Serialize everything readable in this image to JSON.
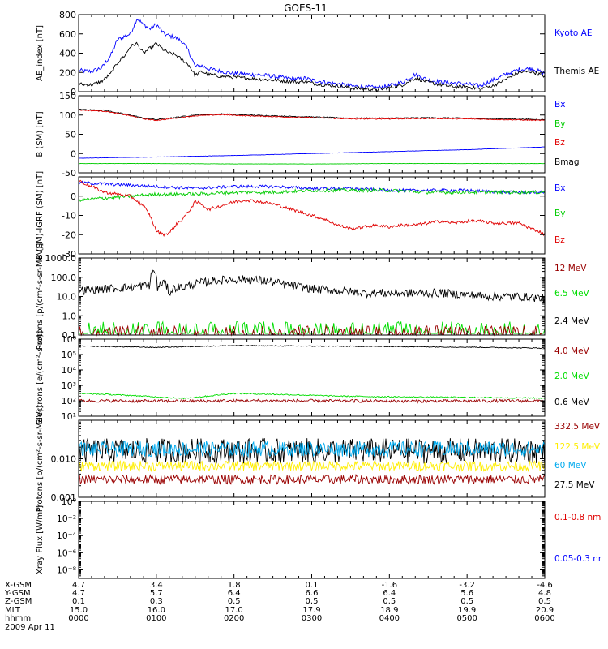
{
  "title": "GOES-11",
  "colors": {
    "black": "#000000",
    "blue": "#0000ff",
    "green": "#00cc00",
    "red": "#e00000",
    "darkred": "#990000",
    "cyan": "#00aaee",
    "yellow": "#ffee00",
    "brightgreen": "#00dd00"
  },
  "chart_data": [
    {
      "type": "line",
      "ylabel": "AE_index [nT]",
      "ylim": [
        0,
        800
      ],
      "yscale": "linear",
      "yticks": [
        0,
        200,
        400,
        600,
        800
      ],
      "yticklabels": [
        "0",
        "200",
        "400",
        "600",
        "800"
      ],
      "legend": [
        {
          "label": "Kyoto AE",
          "color": "blue"
        },
        {
          "label": "Themis AE",
          "color": "black"
        }
      ],
      "series": [
        {
          "name": "Kyoto AE",
          "color": "blue",
          "noise": 22,
          "x": [
            0,
            10,
            18,
            25,
            30,
            36,
            40,
            45,
            50,
            55,
            60,
            66,
            70,
            75,
            80,
            85,
            90,
            95,
            100,
            110,
            120,
            130,
            140,
            150,
            160,
            170,
            175,
            180,
            185,
            190,
            200,
            210,
            220,
            230,
            240,
            250,
            260,
            270,
            280,
            290,
            300,
            310,
            320,
            330,
            340,
            350,
            360
          ],
          "y": [
            220,
            210,
            250,
            380,
            540,
            580,
            600,
            760,
            700,
            650,
            700,
            600,
            580,
            560,
            520,
            420,
            260,
            270,
            240,
            210,
            190,
            180,
            175,
            160,
            140,
            130,
            140,
            120,
            110,
            100,
            80,
            60,
            50,
            40,
            60,
            100,
            180,
            120,
            100,
            90,
            80,
            60,
            120,
            180,
            230,
            240,
            190
          ]
        },
        {
          "name": "Themis AE",
          "color": "black",
          "noise": 18,
          "x": [
            0,
            10,
            18,
            25,
            30,
            36,
            40,
            45,
            50,
            55,
            60,
            66,
            70,
            75,
            80,
            85,
            90,
            95,
            100,
            110,
            120,
            130,
            140,
            150,
            160,
            170,
            175,
            180,
            185,
            190,
            200,
            210,
            220,
            230,
            240,
            250,
            260,
            270,
            280,
            290,
            300,
            310,
            320,
            330,
            340,
            350,
            360
          ],
          "y": [
            80,
            70,
            110,
            190,
            300,
            380,
            470,
            500,
            400,
            450,
            500,
            430,
            400,
            380,
            330,
            280,
            170,
            210,
            180,
            160,
            150,
            140,
            130,
            120,
            110,
            100,
            110,
            90,
            80,
            70,
            60,
            40,
            30,
            20,
            40,
            70,
            140,
            100,
            70,
            50,
            50,
            30,
            60,
            130,
            200,
            210,
            160
          ]
        }
      ]
    },
    {
      "type": "line",
      "ylabel": "B (SM) [nT]",
      "ylim": [
        -50,
        150
      ],
      "yscale": "linear",
      "yticks": [
        -50,
        0,
        50,
        100,
        150
      ],
      "yticklabels": [
        "-50",
        "0",
        "50",
        "100",
        "150"
      ],
      "legend": [
        {
          "label": "Bx",
          "color": "blue"
        },
        {
          "label": "By",
          "color": "green"
        },
        {
          "label": "Bz",
          "color": "red"
        },
        {
          "label": "Bmag",
          "color": "black"
        }
      ],
      "series": [
        {
          "name": "Bmag",
          "color": "black",
          "noise": 1.2,
          "x": [
            0,
            20,
            40,
            50,
            60,
            70,
            90,
            110,
            130,
            150,
            180,
            210,
            240,
            270,
            300,
            330,
            360
          ],
          "y": [
            115,
            112,
            100,
            92,
            88,
            92,
            100,
            103,
            100,
            98,
            95,
            92,
            92,
            93,
            92,
            90,
            88
          ]
        },
        {
          "name": "Bz",
          "color": "red",
          "noise": 1.2,
          "x": [
            0,
            20,
            40,
            50,
            60,
            70,
            90,
            110,
            130,
            150,
            180,
            210,
            240,
            270,
            300,
            330,
            360
          ],
          "y": [
            113,
            110,
            98,
            90,
            86,
            90,
            98,
            101,
            98,
            96,
            93,
            90,
            90,
            91,
            90,
            88,
            86
          ]
        },
        {
          "name": "Bx",
          "color": "blue",
          "noise": 0.4,
          "x": [
            0,
            60,
            120,
            180,
            240,
            300,
            360
          ],
          "y": [
            -12,
            -9,
            -5,
            0,
            5,
            10,
            17
          ]
        },
        {
          "name": "By",
          "color": "green",
          "noise": 0.4,
          "x": [
            0,
            60,
            120,
            180,
            240,
            300,
            360
          ],
          "y": [
            -26,
            -26,
            -27,
            -27,
            -26,
            -26,
            -26
          ]
        }
      ]
    },
    {
      "type": "line",
      "ylabel": "B (SM)-IGRF (SM) [nT]",
      "ylim": [
        -30,
        10
      ],
      "yscale": "linear",
      "yticks": [
        -30,
        -20,
        -10,
        0
      ],
      "yticklabels": [
        "-30",
        "-20",
        "-10",
        "0"
      ],
      "legend": [
        {
          "label": "Bx",
          "color": "blue"
        },
        {
          "label": "By",
          "color": "green"
        },
        {
          "label": "Bz",
          "color": "red"
        }
      ],
      "series": [
        {
          "name": "Bx",
          "color": "blue",
          "noise": 0.8,
          "x": [
            0,
            30,
            60,
            90,
            120,
            150,
            180,
            210,
            240,
            270,
            300,
            330,
            360
          ],
          "y": [
            7,
            6,
            5,
            4,
            5,
            5,
            4,
            4,
            3,
            3,
            3,
            2,
            2
          ]
        },
        {
          "name": "By",
          "color": "green",
          "noise": 0.9,
          "x": [
            0,
            20,
            40,
            60,
            90,
            120,
            150,
            180,
            210,
            240,
            270,
            300,
            330,
            360
          ],
          "y": [
            -2,
            -1,
            0,
            1,
            1,
            2,
            2,
            3,
            3,
            3,
            2,
            2,
            2,
            2
          ]
        },
        {
          "name": "Bz",
          "color": "red",
          "noise": 0.8,
          "x": [
            0,
            10,
            20,
            30,
            40,
            50,
            55,
            60,
            65,
            70,
            75,
            80,
            85,
            90,
            95,
            100,
            110,
            120,
            130,
            140,
            150,
            160,
            170,
            180,
            190,
            200,
            210,
            220,
            230,
            240,
            250,
            260,
            270,
            280,
            290,
            300,
            310,
            320,
            330,
            340,
            350,
            355,
            360
          ],
          "y": [
            8,
            5,
            2,
            1,
            0,
            -5,
            -10,
            -18,
            -20,
            -19,
            -15,
            -12,
            -8,
            -3,
            -4,
            -7,
            -5,
            -3,
            -2,
            -3,
            -4,
            -6,
            -8,
            -10,
            -12,
            -15,
            -17,
            -16,
            -15,
            -16,
            -15,
            -15,
            -14,
            -13,
            -14,
            -13,
            -13,
            -14,
            -14,
            -14,
            -17,
            -18,
            -20
          ]
        }
      ]
    },
    {
      "type": "line",
      "ylabel": "Protons [p/(cm²-s-sr-MeV)]",
      "ylim": [
        0.1,
        1000
      ],
      "yscale": "log",
      "yticks": [
        0.1,
        1,
        10,
        100,
        1000
      ],
      "yticklabels": [
        "0.1",
        "1.0",
        "10.0",
        "100.0",
        "1000.0"
      ],
      "legend": [
        {
          "label": "12 MeV",
          "color": "darkred"
        },
        {
          "label": "6.5 MeV",
          "color": "brightgreen"
        },
        {
          "label": "2.4 MeV",
          "color": "black"
        }
      ],
      "series": [
        {
          "name": "2.4 MeV",
          "color": "black",
          "noise": 0.22,
          "x": [
            0,
            20,
            40,
            55,
            58,
            61,
            65,
            70,
            75,
            80,
            100,
            120,
            140,
            160,
            180,
            200,
            220,
            240,
            260,
            280,
            300,
            320,
            340,
            360
          ],
          "y": [
            20,
            25,
            30,
            40,
            250,
            20,
            60,
            15,
            30,
            30,
            60,
            80,
            70,
            40,
            25,
            20,
            15,
            15,
            15,
            15,
            12,
            10,
            10,
            8
          ]
        },
        {
          "name": "6.5 MeV",
          "color": "brightgreen",
          "spiky": true,
          "base": 0.12,
          "peak": 0.5
        },
        {
          "name": "12 MeV",
          "color": "darkred",
          "spiky": true,
          "base": 0.1,
          "peak": 0.3
        }
      ]
    },
    {
      "type": "line",
      "ylabel": "Electrons [e/(cm²-s-sr)]",
      "ylim": [
        10,
        1000000
      ],
      "yscale": "log",
      "yticks": [
        10,
        100,
        1000,
        10000,
        100000,
        1000000
      ],
      "yticklabels": [
        "10¹",
        "10²",
        "10³",
        "10⁴",
        "10⁵",
        "10⁶"
      ],
      "legend": [
        {
          "label": "4.0 MeV",
          "color": "darkred"
        },
        {
          "label": "2.0 MeV",
          "color": "brightgreen"
        },
        {
          "label": "0.6 MeV",
          "color": "black"
        }
      ],
      "series": [
        {
          "name": "0.6 MeV",
          "color": "black",
          "noise": 0.03,
          "x": [
            0,
            60,
            120,
            180,
            240,
            300,
            360
          ],
          "y": [
            350000,
            290000,
            380000,
            350000,
            330000,
            300000,
            260000
          ]
        },
        {
          "name": "2.0 MeV",
          "color": "brightgreen",
          "noise": 0.04,
          "x": [
            0,
            40,
            80,
            100,
            120,
            160,
            200,
            240,
            280,
            320,
            360
          ],
          "y": [
            300,
            220,
            140,
            200,
            300,
            250,
            200,
            180,
            170,
            160,
            150
          ]
        },
        {
          "name": "4.0 MeV",
          "color": "darkred",
          "noise": 0.1,
          "x": [
            0,
            60,
            120,
            180,
            240,
            300,
            360
          ],
          "y": [
            100,
            95,
            100,
            100,
            95,
            95,
            100
          ]
        }
      ]
    },
    {
      "type": "line",
      "ylabel": "Protons [p/(cm²-s-sr-MeV)]",
      "ylim": [
        0.001,
        0.1
      ],
      "yscale": "log",
      "yticks": [
        0.001,
        0.01
      ],
      "yticklabels": [
        "0.001",
        "0.010"
      ],
      "legend": [
        {
          "label": "332.5 MeV",
          "color": "darkred"
        },
        {
          "label": "122.5 MeV",
          "color": "yellow"
        },
        {
          "label": "60 MeV",
          "color": "cyan"
        },
        {
          "label": "27.5 MeV",
          "color": "black"
        }
      ],
      "series": [
        {
          "name": "27.5 MeV",
          "color": "black",
          "noise": 0.33,
          "x": [
            0,
            360
          ],
          "y": [
            0.016,
            0.016
          ]
        },
        {
          "name": "60 MeV",
          "color": "cyan",
          "noise": 0.2,
          "x": [
            0,
            360
          ],
          "y": [
            0.018,
            0.018
          ]
        },
        {
          "name": "122.5 MeV",
          "color": "yellow",
          "noise": 0.13,
          "x": [
            0,
            360
          ],
          "y": [
            0.0065,
            0.0065
          ]
        },
        {
          "name": "332.5 MeV",
          "color": "darkred",
          "noise": 0.12,
          "x": [
            0,
            360
          ],
          "y": [
            0.0029,
            0.0029
          ]
        }
      ]
    },
    {
      "type": "line",
      "ylabel": "Xray Flux [W/m²]",
      "ylim": [
        1e-09,
        1
      ],
      "yscale": "log",
      "yticks": [
        1e-08,
        1e-06,
        0.0001,
        0.01,
        1
      ],
      "yticklabels": [
        "10⁻⁸",
        "10⁻⁶",
        "10⁻⁴",
        "10⁻²",
        "10⁰"
      ],
      "legend": [
        {
          "label": "0.1-0.8 nm",
          "color": "red"
        },
        {
          "label": "0.05-0.3 nr",
          "color": "blue"
        }
      ],
      "series": []
    }
  ],
  "footer": {
    "rows": [
      {
        "label": "X-GSM",
        "values": [
          "4.7",
          "3.4",
          "1.8",
          "0.1",
          "-1.6",
          "-3.2",
          "-4.6"
        ]
      },
      {
        "label": "Y-GSM",
        "values": [
          "4.7",
          "5.7",
          "6.4",
          "6.6",
          "6.4",
          "5.6",
          "4.8"
        ]
      },
      {
        "label": "Z-GSM",
        "values": [
          "0.1",
          "0.3",
          "0.5",
          "0.5",
          "0.5",
          "0.5",
          "0.5"
        ]
      },
      {
        "label": "MLT",
        "values": [
          "15.0",
          "16.0",
          "17.0",
          "17.9",
          "18.9",
          "19.9",
          "20.9"
        ]
      },
      {
        "label": "hhmm",
        "values": [
          "0000",
          "0100",
          "0200",
          "0300",
          "0400",
          "0500",
          "0600"
        ]
      }
    ],
    "date": "2009 Apr 11"
  }
}
